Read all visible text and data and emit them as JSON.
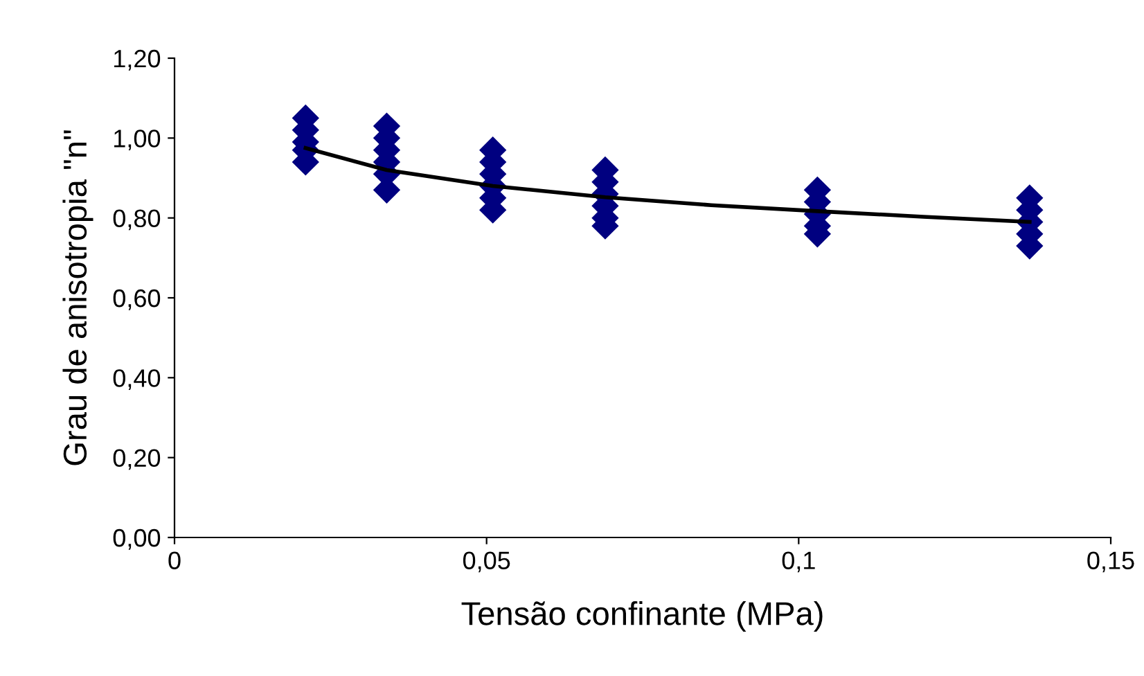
{
  "chart_data": {
    "type": "scatter",
    "xlabel": "Tensão confinante (MPa)",
    "ylabel": "Grau de anisotropia \"n\"",
    "xlim": [
      0,
      0.15
    ],
    "xticks": [
      0,
      {
        "value": 0.05,
        "label": "0,05"
      },
      {
        "value": 0.1,
        "label": "0,1"
      },
      {
        "value": 0.15,
        "label": "0,15"
      }
    ],
    "ylim": [
      0,
      1.2
    ],
    "yticks": [
      {
        "value": 0,
        "label": "0,00"
      },
      {
        "value": 0.2,
        "label": "0,20"
      },
      {
        "value": 0.4,
        "label": "0,40"
      },
      {
        "value": 0.6,
        "label": "0,60"
      },
      {
        "value": 0.8,
        "label": "0,80"
      },
      {
        "value": 1.0,
        "label": "1,00"
      },
      {
        "value": 1.2,
        "label": "1,20"
      }
    ],
    "marker": "diamond",
    "grid": false,
    "legend": false,
    "series": [
      {
        "color": "#000080",
        "x": [
          0.021,
          0.021,
          0.021,
          0.021,
          0.021,
          0.034,
          0.034,
          0.034,
          0.034,
          0.034,
          0.034,
          0.051,
          0.051,
          0.051,
          0.051,
          0.051,
          0.051,
          0.069,
          0.069,
          0.069,
          0.069,
          0.069,
          0.069,
          0.103,
          0.103,
          0.103,
          0.103,
          0.103,
          0.137,
          0.137,
          0.137,
          0.137,
          0.137
        ],
        "values": [
          1.05,
          1.02,
          0.99,
          0.97,
          0.94,
          1.03,
          1.0,
          0.97,
          0.94,
          0.91,
          0.87,
          0.97,
          0.94,
          0.91,
          0.88,
          0.85,
          0.82,
          0.92,
          0.89,
          0.86,
          0.83,
          0.8,
          0.78,
          0.87,
          0.84,
          0.81,
          0.78,
          0.76,
          0.85,
          0.82,
          0.79,
          0.76,
          0.73
        ]
      },
      {
        "type": "line",
        "color": "#000000",
        "marker": "none",
        "x": [
          0.021,
          0.034,
          0.051,
          0.069,
          0.086,
          0.103,
          0.12,
          0.137
        ],
        "values": [
          0.975,
          0.92,
          0.88,
          0.852,
          0.832,
          0.817,
          0.803,
          0.79
        ]
      }
    ]
  }
}
